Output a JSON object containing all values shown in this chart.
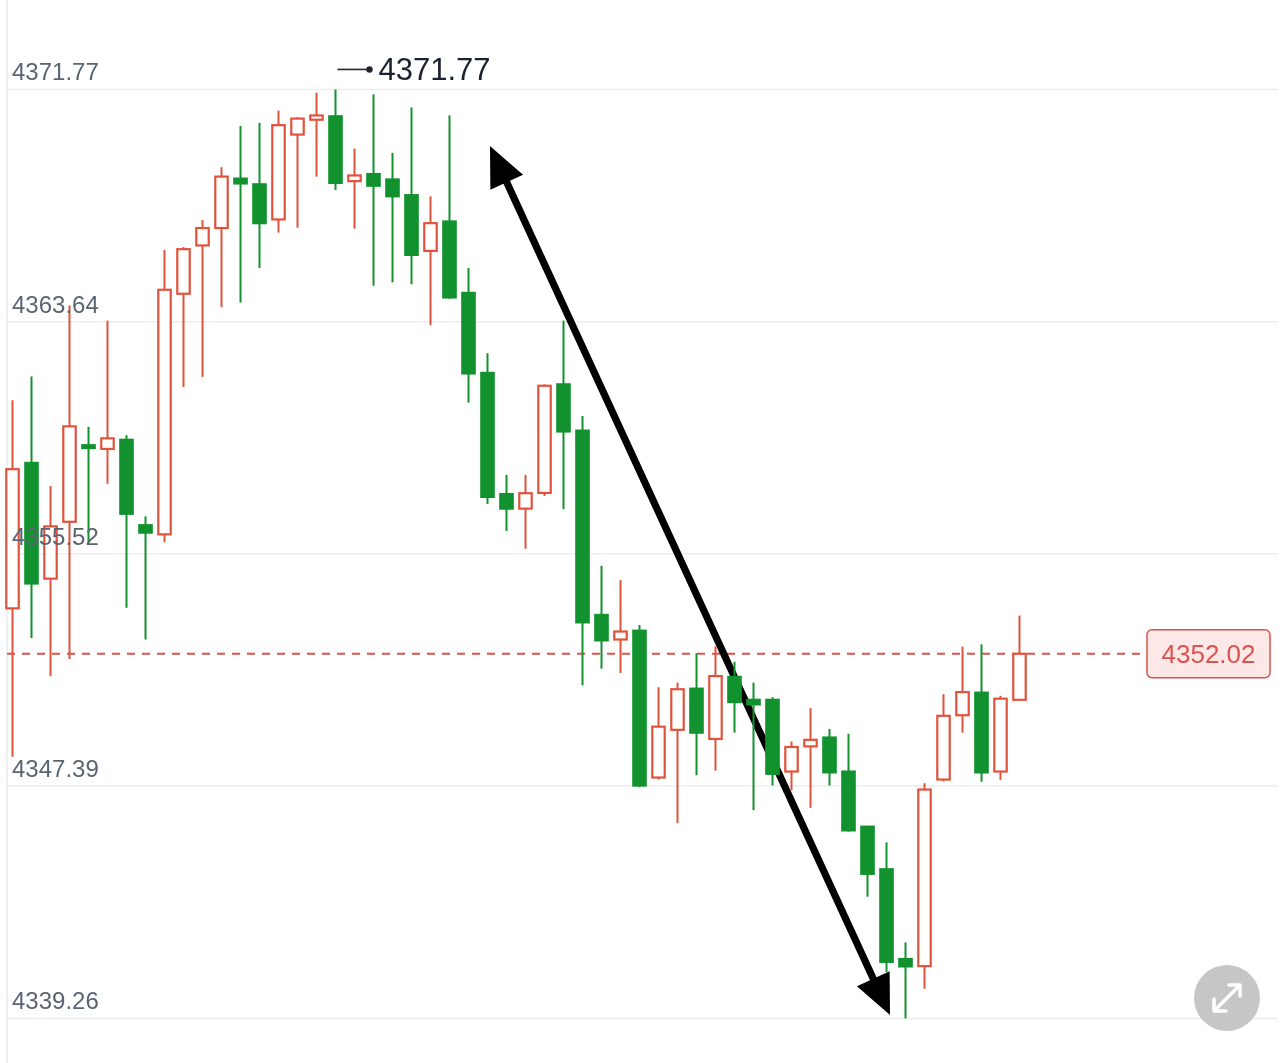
{
  "chart_data": {
    "type": "candlestick",
    "categories": [
      null,
      null,
      null,
      null,
      null,
      null,
      null,
      null,
      null,
      null,
      null,
      null,
      null,
      null,
      null,
      null,
      null,
      null,
      null,
      null,
      null,
      null,
      null,
      null,
      null,
      null,
      null,
      null,
      null,
      null,
      null,
      null,
      null,
      null,
      null,
      null,
      null,
      null,
      null,
      null,
      null,
      null,
      null,
      null,
      null,
      null,
      null,
      null,
      null,
      null,
      null,
      null,
      null,
      null
    ],
    "ohlc": [
      [
        4353.61,
        4360.89,
        4348.42,
        4358.48
      ],
      [
        4358.7,
        4361.72,
        4352.57,
        4354.48
      ],
      [
        4354.65,
        4357.89,
        4351.24,
        4356.48
      ],
      [
        4356.64,
        4364.21,
        4351.84,
        4359.98
      ],
      [
        4359.32,
        4359.96,
        4355.92,
        4359.22
      ],
      [
        4359.19,
        4363.68,
        4357.97,
        4359.56
      ],
      [
        4359.51,
        4359.67,
        4353.63,
        4356.92
      ],
      [
        4356.52,
        4356.83,
        4352.52,
        4356.26
      ],
      [
        4356.2,
        4366.15,
        4355.92,
        4364.76
      ],
      [
        4364.62,
        4366.25,
        4361.36,
        4366.18
      ],
      [
        4366.31,
        4367.2,
        4361.71,
        4366.92
      ],
      [
        4366.92,
        4369.05,
        4364.15,
        4368.72
      ],
      [
        4368.65,
        4370.49,
        4364.31,
        4368.48
      ],
      [
        4368.45,
        4370.6,
        4365.52,
        4367.09
      ],
      [
        4367.22,
        4371.03,
        4366.76,
        4370.52
      ],
      [
        4370.19,
        4370.8,
        4366.93,
        4370.75
      ],
      [
        4370.71,
        4371.66,
        4368.72,
        4370.86
      ],
      [
        4370.83,
        4371.77,
        4368.25,
        4368.5
      ],
      [
        4368.56,
        4369.7,
        4366.9,
        4368.76
      ],
      [
        4368.81,
        4371.6,
        4364.9,
        4368.4
      ],
      [
        4368.62,
        4369.55,
        4365.02,
        4368.03
      ],
      [
        4368.07,
        4371.14,
        4364.95,
        4365.98
      ],
      [
        4366.12,
        4368.03,
        4363.52,
        4367.09
      ],
      [
        4367.15,
        4370.86,
        4364.45,
        4364.49
      ],
      [
        4364.65,
        4365.52,
        4360.81,
        4361.83
      ],
      [
        4361.85,
        4362.54,
        4357.26,
        4357.51
      ],
      [
        4357.61,
        4358.28,
        4356.32,
        4357.1
      ],
      [
        4357.1,
        4358.28,
        4355.7,
        4357.64
      ],
      [
        4357.65,
        4361.45,
        4357.54,
        4361.4
      ],
      [
        4361.45,
        4363.68,
        4357.08,
        4359.8
      ],
      [
        4359.83,
        4360.34,
        4350.92,
        4353.12
      ],
      [
        4353.38,
        4355.1,
        4351.5,
        4352.49
      ],
      [
        4352.52,
        4354.6,
        4351.35,
        4352.8
      ],
      [
        4352.83,
        4353.03,
        4347.35,
        4347.41
      ],
      [
        4347.69,
        4350.85,
        4347.62,
        4349.47
      ],
      [
        4349.36,
        4351.01,
        4346.09,
        4350.78
      ],
      [
        4350.8,
        4352.04,
        4347.77,
        4349.26
      ],
      [
        4349.04,
        4352.28,
        4347.93,
        4351.24
      ],
      [
        4351.21,
        4351.74,
        4349.26,
        4350.33
      ],
      [
        4350.41,
        4351.01,
        4346.55,
        4350.25
      ],
      [
        4350.41,
        4350.5,
        4347.41,
        4347.82
      ],
      [
        4347.9,
        4348.95,
        4347.24,
        4348.76
      ],
      [
        4348.78,
        4350.12,
        4346.63,
        4349.01
      ],
      [
        4349.09,
        4349.39,
        4347.41,
        4347.87
      ],
      [
        4347.9,
        4349.22,
        4345.8,
        4345.84
      ],
      [
        4345.97,
        4346.0,
        4343.52,
        4344.32
      ],
      [
        4344.48,
        4345.42,
        4340.88,
        4341.24
      ],
      [
        4341.34,
        4341.92,
        4339.26,
        4341.08
      ],
      [
        4341.09,
        4347.49,
        4340.3,
        4347.27
      ],
      [
        4347.62,
        4350.61,
        4347.55,
        4349.85
      ],
      [
        4349.87,
        4352.27,
        4349.26,
        4350.68
      ],
      [
        4350.66,
        4352.35,
        4347.54,
        4347.87
      ],
      [
        4347.9,
        4350.55,
        4347.61,
        4350.45
      ],
      [
        4350.41,
        4353.36,
        4350.41,
        4352.02
      ]
    ],
    "colors": [
      "#e0533d",
      "#12922e",
      "#e0533d",
      "#e0533d",
      "#12922e",
      "#e0533d",
      "#12922e",
      "#12922e",
      "#e0533d",
      "#e0533d",
      "#e0533d",
      "#e0533d",
      "#12922e",
      "#12922e",
      "#e0533d",
      "#e0533d",
      "#e0533d",
      "#12922e",
      "#e0533d",
      "#12922e",
      "#12922e",
      "#12922e",
      "#e0533d",
      "#12922e",
      "#12922e",
      "#12922e",
      "#12922e",
      "#e0533d",
      "#e0533d",
      "#12922e",
      "#12922e",
      "#12922e",
      "#e0533d",
      "#12922e",
      "#e0533d",
      "#e0533d",
      "#12922e",
      "#e0533d",
      "#12922e",
      "#12922e",
      "#12922e",
      "#e0533d",
      "#e0533d",
      "#12922e",
      "#12922e",
      "#12922e",
      "#12922e",
      "#12922e",
      "#e0533d",
      "#e0533d",
      "#e0533d",
      "#12922e",
      "#e0533d",
      "#e0533d"
    ],
    "ylim": [
      4337.7,
      4374.9
    ],
    "yticks": [
      4339.26,
      4347.39,
      4355.52,
      4363.64,
      4371.77
    ],
    "grid": "y",
    "tick_labels": "y",
    "ref_lines": [
      {
        "axis": "y",
        "value": 4352.02,
        "label": "4352.02",
        "color": "#d9534f",
        "line_style": "dashed"
      }
    ],
    "annotations": [
      "4371.77"
    ]
  }
}
